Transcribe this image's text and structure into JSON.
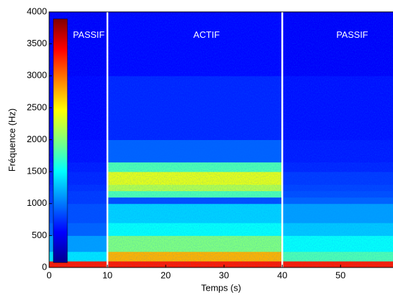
{
  "chart_data": {
    "type": "heatmap",
    "x_label": "Temps (s)",
    "y_label": "Fréquence (Hz)",
    "x_edges": [
      0,
      10,
      40,
      59
    ],
    "y_edges": [
      0,
      100,
      250,
      500,
      700,
      1000,
      1100,
      1200,
      1300,
      1500,
      1650,
      2000,
      3000,
      4000
    ],
    "values": [
      [
        0.85,
        0.35,
        0.28,
        0.22,
        0.2,
        0.18,
        0.18,
        0.17,
        0.16,
        0.15,
        0.14,
        0.13,
        0.12
      ],
      [
        0.85,
        0.7,
        0.5,
        0.38,
        0.33,
        0.2,
        0.45,
        0.55,
        0.6,
        0.45,
        0.22,
        0.16,
        0.13
      ],
      [
        0.85,
        0.45,
        0.38,
        0.32,
        0.28,
        0.22,
        0.2,
        0.19,
        0.18,
        0.16,
        0.15,
        0.14,
        0.12
      ]
    ],
    "xlim": [
      0,
      59
    ],
    "ylim": [
      0,
      4000
    ],
    "xticks": [
      0,
      10,
      20,
      30,
      40,
      50
    ],
    "yticks": [
      0,
      500,
      1000,
      1500,
      2000,
      2500,
      3000,
      3500,
      4000
    ],
    "dividers": [
      10,
      40
    ],
    "divider_color": "#ffffff",
    "annotations": [
      {
        "text": "PASSIF",
        "x": 6.8,
        "y": 3630
      },
      {
        "text": "ACTIF",
        "x": 27,
        "y": 3630
      },
      {
        "text": "PASSIF",
        "x": 52,
        "y": 3630
      }
    ],
    "colorbar": true
  }
}
